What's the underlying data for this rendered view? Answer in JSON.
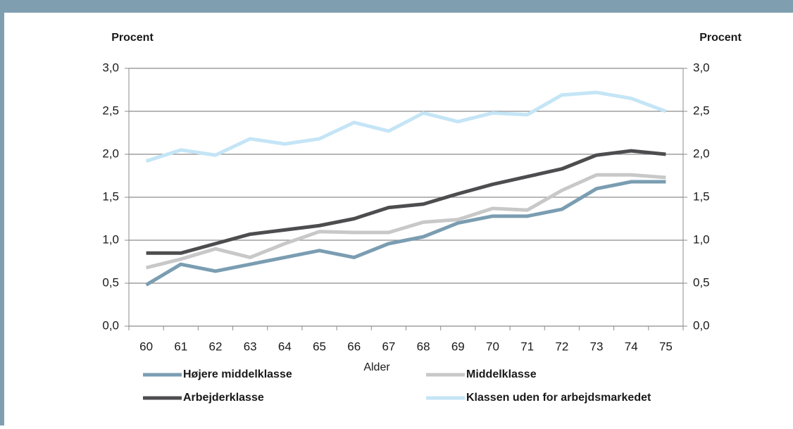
{
  "chart_data": {
    "type": "line",
    "y_label": "Procent",
    "y2_label": "Procent",
    "x_label": "Alder",
    "categories": [
      "60",
      "61",
      "62",
      "63",
      "64",
      "65",
      "66",
      "67",
      "68",
      "69",
      "70",
      "71",
      "72",
      "73",
      "74",
      "75"
    ],
    "series": [
      {
        "name": "Højere middelklasse",
        "color": "#7a9db1",
        "values": [
          0.48,
          0.72,
          0.64,
          0.72,
          0.8,
          0.88,
          0.8,
          0.96,
          1.04,
          1.2,
          1.28,
          1.28,
          1.36,
          1.6,
          1.68,
          1.68
        ]
      },
      {
        "name": "Middelklasse",
        "color": "#c8c8c8",
        "values": [
          0.68,
          0.78,
          0.9,
          0.8,
          0.96,
          1.1,
          1.09,
          1.09,
          1.21,
          1.24,
          1.37,
          1.35,
          1.58,
          1.76,
          1.76,
          1.73
        ]
      },
      {
        "name": "Arbejderklasse",
        "color": "#4d4d4f",
        "values": [
          0.85,
          0.85,
          0.96,
          1.07,
          1.12,
          1.17,
          1.25,
          1.38,
          1.42,
          1.54,
          1.65,
          1.74,
          1.83,
          1.99,
          2.04,
          2.0
        ]
      },
      {
        "name": "Klassen uden for arbejdsmarkedet",
        "color": "#c4e5f6",
        "values": [
          1.92,
          2.05,
          1.99,
          2.18,
          2.12,
          2.18,
          2.37,
          2.27,
          2.48,
          2.38,
          2.48,
          2.46,
          2.69,
          2.72,
          2.65,
          2.5
        ]
      }
    ],
    "ylim": [
      0,
      3
    ],
    "yticks": [
      {
        "value": 0,
        "label": "0,0"
      },
      {
        "value": 0.5,
        "label": "0,5"
      },
      {
        "value": 1,
        "label": "1,0"
      },
      {
        "value": 1.5,
        "label": "1,5"
      },
      {
        "value": 2,
        "label": "2,0"
      },
      {
        "value": 2.5,
        "label": "2,5"
      },
      {
        "value": 3,
        "label": "3,0"
      }
    ],
    "y2lim": [
      0,
      3
    ],
    "y2ticks": [
      {
        "value": 0,
        "label": "0,0"
      },
      {
        "value": 0.5,
        "label": "0,5"
      },
      {
        "value": 1,
        "label": "1,0"
      },
      {
        "value": 1.5,
        "label": "1,5"
      },
      {
        "value": 2,
        "label": "2,0"
      },
      {
        "value": 2.5,
        "label": "2,5"
      },
      {
        "value": 3,
        "label": "3,0"
      }
    ],
    "grid": true
  }
}
